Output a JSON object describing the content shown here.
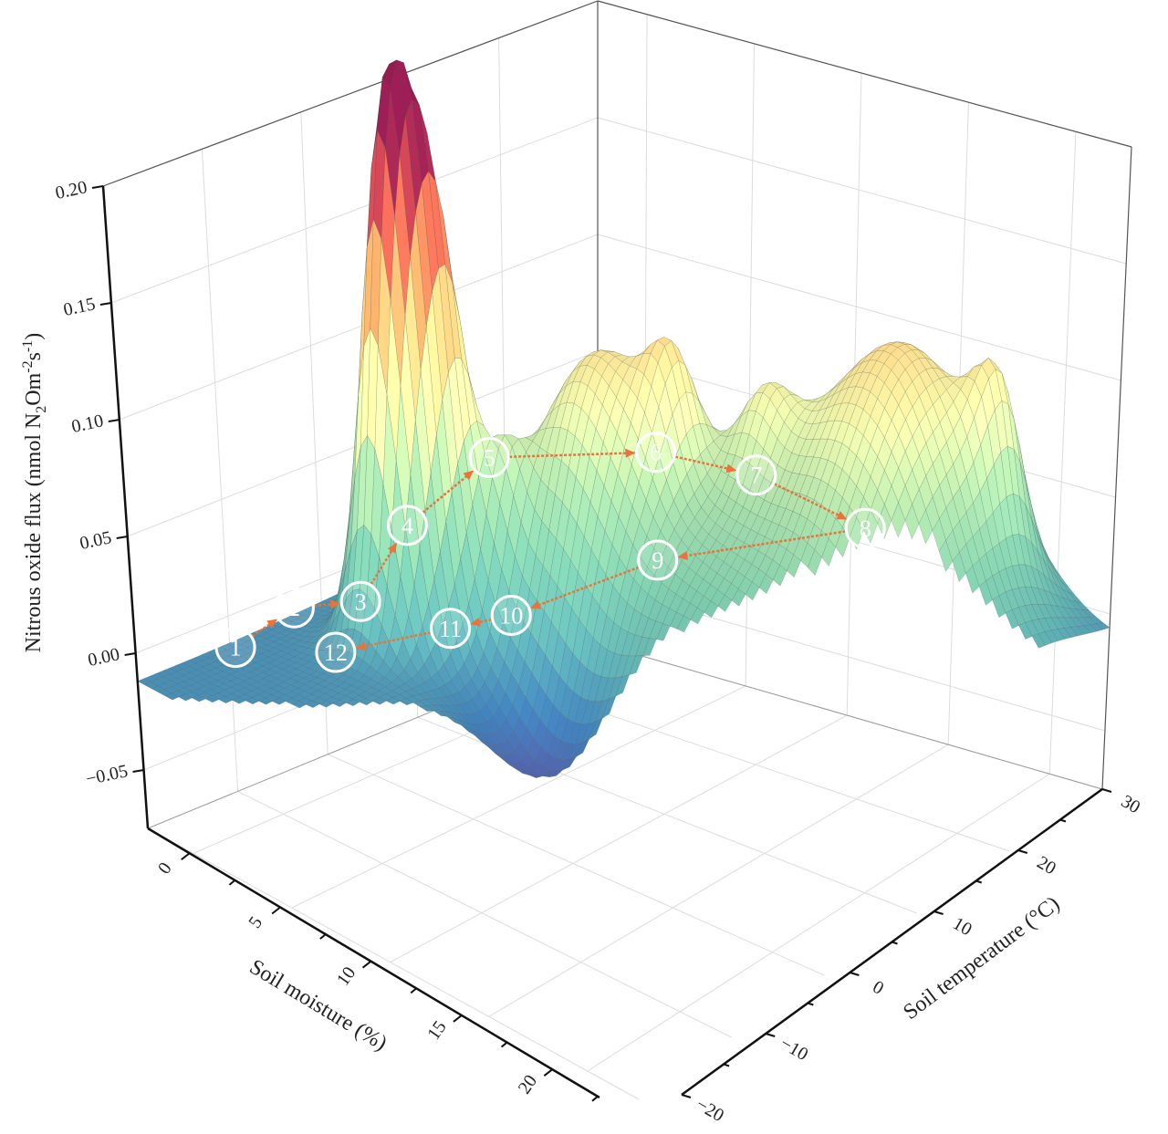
{
  "chart_data": {
    "type": "surface3d",
    "title": "",
    "xlabel": "Soil moisture (%)",
    "ylabel": "Soil temperature (°C)",
    "zlabel_parts": [
      "Nitrous oxide flux (nmol N",
      "2",
      "Om",
      "-2",
      "s",
      "-1",
      ")"
    ],
    "xlim": [
      -2.3,
      22.6
    ],
    "ylim": [
      -20,
      30
    ],
    "zlim": [
      -0.075,
      0.2
    ],
    "xticks": [
      0,
      5,
      10,
      15,
      20
    ],
    "xticklabels": [
      "0",
      "5",
      "10",
      "15",
      "20"
    ],
    "yticks": [
      -20,
      -10,
      0,
      10,
      20,
      30
    ],
    "yticklabels": [
      "−20",
      "−10",
      "0",
      "10",
      "20",
      "30"
    ],
    "zticks": [
      -0.05,
      0,
      0.05,
      0.1,
      0.15,
      0.2
    ],
    "zticklabels": [
      "−0.05",
      "0.00",
      "0.05",
      "0.10",
      "0.15",
      "0.20"
    ],
    "grid": true,
    "surface": {
      "base_flux": -0.012,
      "features": [
        {
          "moisture": 2.2,
          "temperature": -1.5,
          "flux": 0.2,
          "sd_moisture": 1.0,
          "sd_temperature": 2.0
        },
        {
          "moisture": 2.9,
          "temperature": 1.75,
          "flux": 0.155,
          "sd_moisture": 1.0,
          "sd_temperature": 2.0
        },
        {
          "moisture": 6.9,
          "temperature": 9,
          "flux": 0.08,
          "sd_moisture": 2.2,
          "sd_temperature": 4.5
        },
        {
          "moisture": 16.6,
          "temperature": 21,
          "flux": 0.11,
          "sd_moisture": 3.0,
          "sd_temperature": 6.0
        },
        {
          "moisture": 19.1,
          "temperature": 25,
          "flux": 0.05,
          "sd_moisture": 0.8,
          "sd_temperature": 2.0
        },
        {
          "moisture": 10.2,
          "temperature": 12.5,
          "flux": 0.06,
          "sd_moisture": 5.5,
          "sd_temperature": 11
        },
        {
          "moisture": 8.9,
          "temperature": 0,
          "flux": -0.06,
          "sd_moisture": 2.5,
          "sd_temperature": 4.0
        },
        {
          "moisture": 9.5,
          "temperature": 12,
          "flux": 0.04,
          "sd_moisture": 0.8,
          "sd_temperature": 2.0
        },
        {
          "moisture": 12,
          "temperature": 16,
          "flux": 0.035,
          "sd_moisture": 1.0,
          "sd_temperature": 2.0
        },
        {
          "moisture": 5,
          "temperature": 4,
          "flux": 0.035,
          "sd_moisture": 0.7,
          "sd_temperature": 1.5
        }
      ]
    },
    "colormap": [
      "#5e4fa2",
      "#3f7fb8",
      "#5fb0b0",
      "#7dc8a8",
      "#a7d9a5",
      "#e6f0a8",
      "#fbd98a",
      "#f59c5e",
      "#d9534f",
      "#8e1b4e"
    ],
    "route_color": "#e8743b",
    "route": [
      {
        "label": "1",
        "moisture": 0.2,
        "temperature": -14.6,
        "flux": 0.005
      },
      {
        "label": "2",
        "moisture": 0.7,
        "temperature": -9.25,
        "flux": 0.015
      },
      {
        "label": "3",
        "moisture": 3.2,
        "temperature": -7.5,
        "flux": 0.025
      },
      {
        "label": "4",
        "moisture": 4.7,
        "temperature": -5.5,
        "flux": 0.06
      },
      {
        "label": "5",
        "moisture": 6.9,
        "temperature": -1.5,
        "flux": 0.09
      },
      {
        "label": "6",
        "moisture": 10.4,
        "temperature": 8.25,
        "flux": 0.085
      },
      {
        "label": "7",
        "moisture": 12.6,
        "temperature": 14,
        "flux": 0.07
      },
      {
        "label": "8",
        "moisture": 15.6,
        "temperature": 19,
        "flux": 0.045
      },
      {
        "label": "9",
        "moisture": 10.6,
        "temperature": 8,
        "flux": 0.04
      },
      {
        "label": "10",
        "moisture": 7.7,
        "temperature": -1.25,
        "flux": 0.025
      },
      {
        "label": "11",
        "moisture": 6.2,
        "temperature": -4.5,
        "flux": 0.02
      },
      {
        "label": "12",
        "moisture": 3.4,
        "temperature": -10.75,
        "flux": 0.01
      }
    ]
  }
}
